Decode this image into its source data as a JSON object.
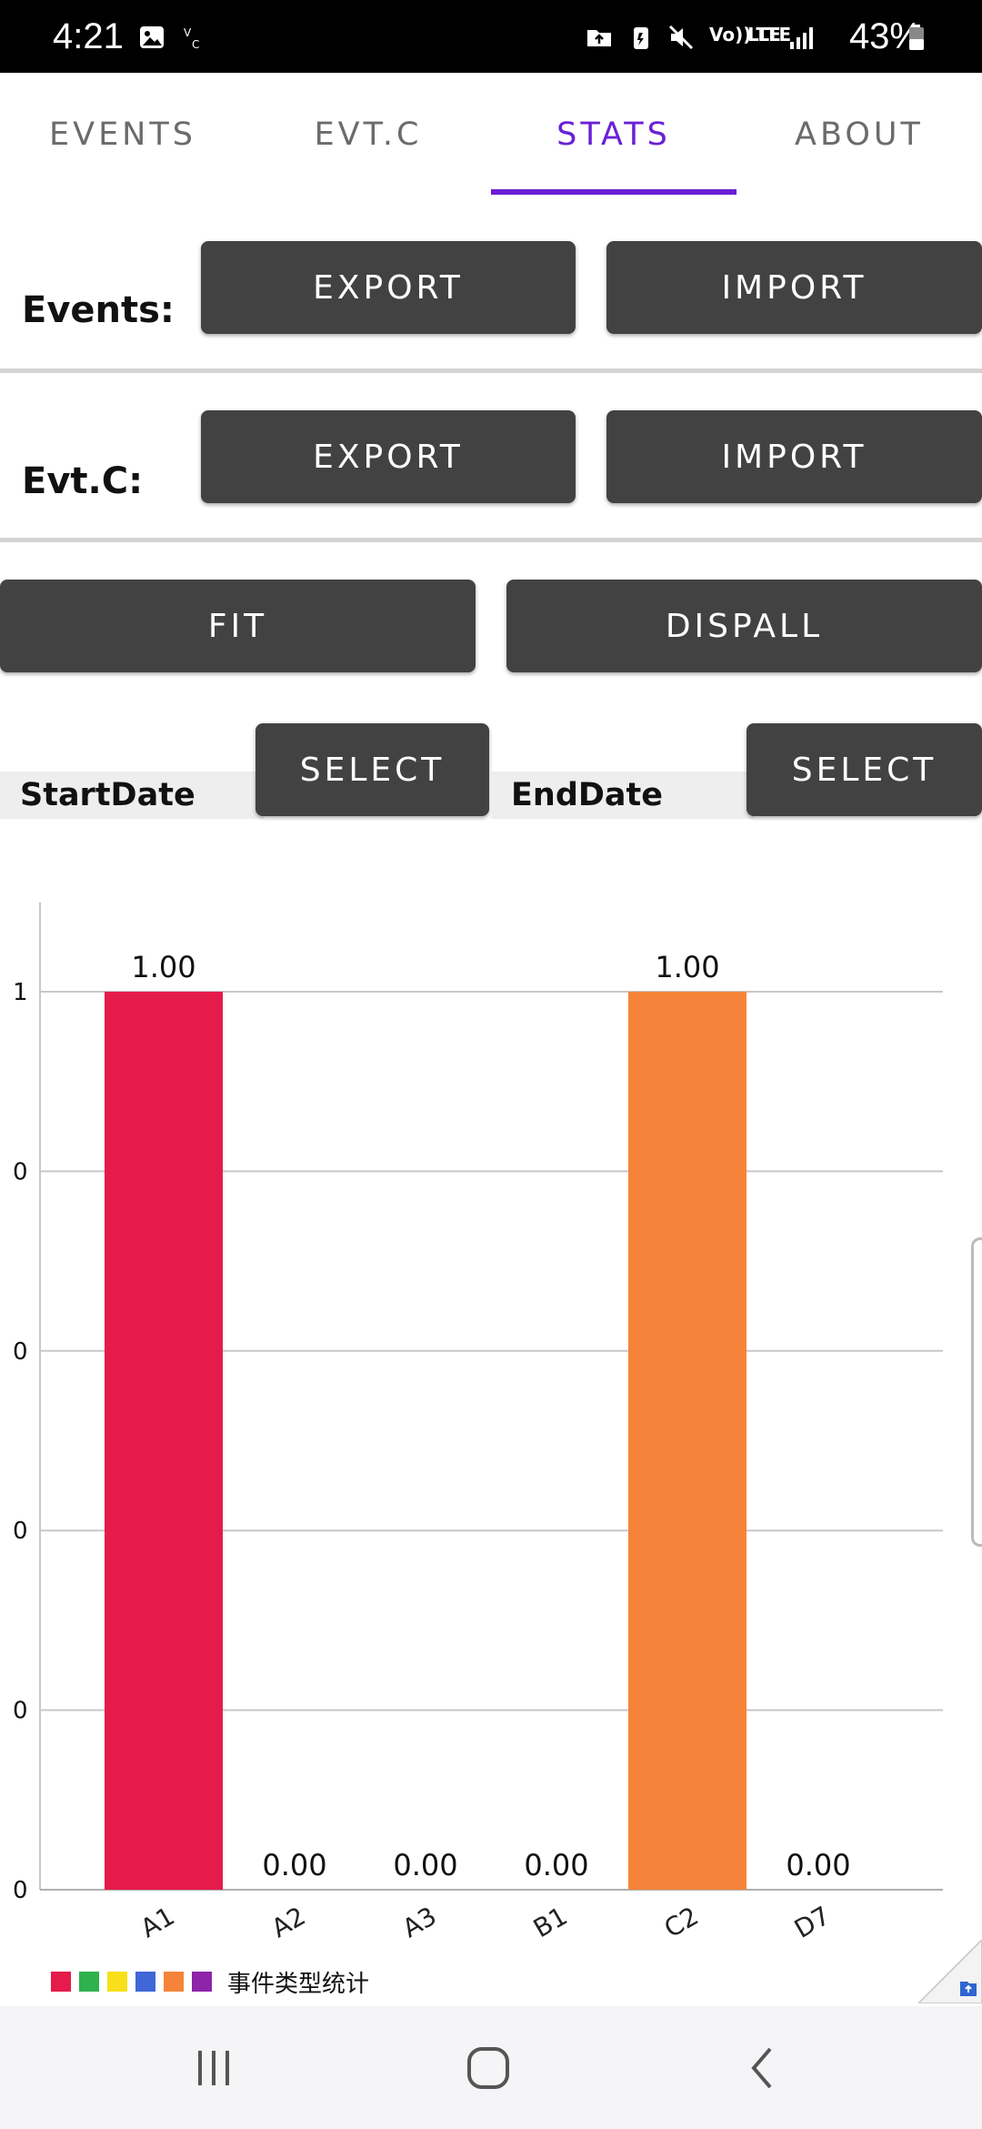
{
  "status_bar": {
    "time": "4:21",
    "battery": "43%",
    "signal_label_1": "Vo)) LTE",
    "signal_label_2": "LTE"
  },
  "tabs": [
    {
      "label": "EVENTS",
      "active": false
    },
    {
      "label": "EVT.C",
      "active": false
    },
    {
      "label": "STATS",
      "active": true
    },
    {
      "label": "ABOUT",
      "active": false
    }
  ],
  "events_row": {
    "label": "Events:",
    "export_label": "EXPORT",
    "import_label": "IMPORT"
  },
  "evtc_row": {
    "label": "Evt.C:",
    "export_label": "EXPORT",
    "import_label": "IMPORT"
  },
  "actions": {
    "fit_label": "FIT",
    "dispall_label": "DISPALL"
  },
  "dates": {
    "start_label": "StartDate",
    "start_select_label": "SELECT",
    "end_label": "EndDate",
    "end_select_label": "SELECT"
  },
  "legend": {
    "label": "事件类型统计",
    "colors": [
      "#e41b4b",
      "#2fb14e",
      "#f8df1a",
      "#3f67d6",
      "#f5843a",
      "#8e24aa"
    ]
  },
  "colors": {
    "accent": "#6a1fd6",
    "button_bg": "#424242"
  },
  "chart_data": {
    "type": "bar",
    "categories": [
      "A1",
      "A2",
      "A3",
      "B1",
      "C2",
      "D7"
    ],
    "values": [
      1.0,
      0.0,
      0.0,
      0.0,
      1.0,
      0.0
    ],
    "data_labels": [
      "1.00",
      "0.00",
      "0.00",
      "0.00",
      "1.00",
      "0.00"
    ],
    "bar_colors": [
      "#e41b4b",
      "#2fb14e",
      "#f8df1a",
      "#3f67d6",
      "#f5843a",
      "#8e24aa"
    ],
    "y_tick_labels": [
      "0",
      "0",
      "0",
      "0",
      "0",
      "1"
    ],
    "ylim": [
      0,
      1
    ],
    "grid": true,
    "legend_position": "bottom-left"
  }
}
